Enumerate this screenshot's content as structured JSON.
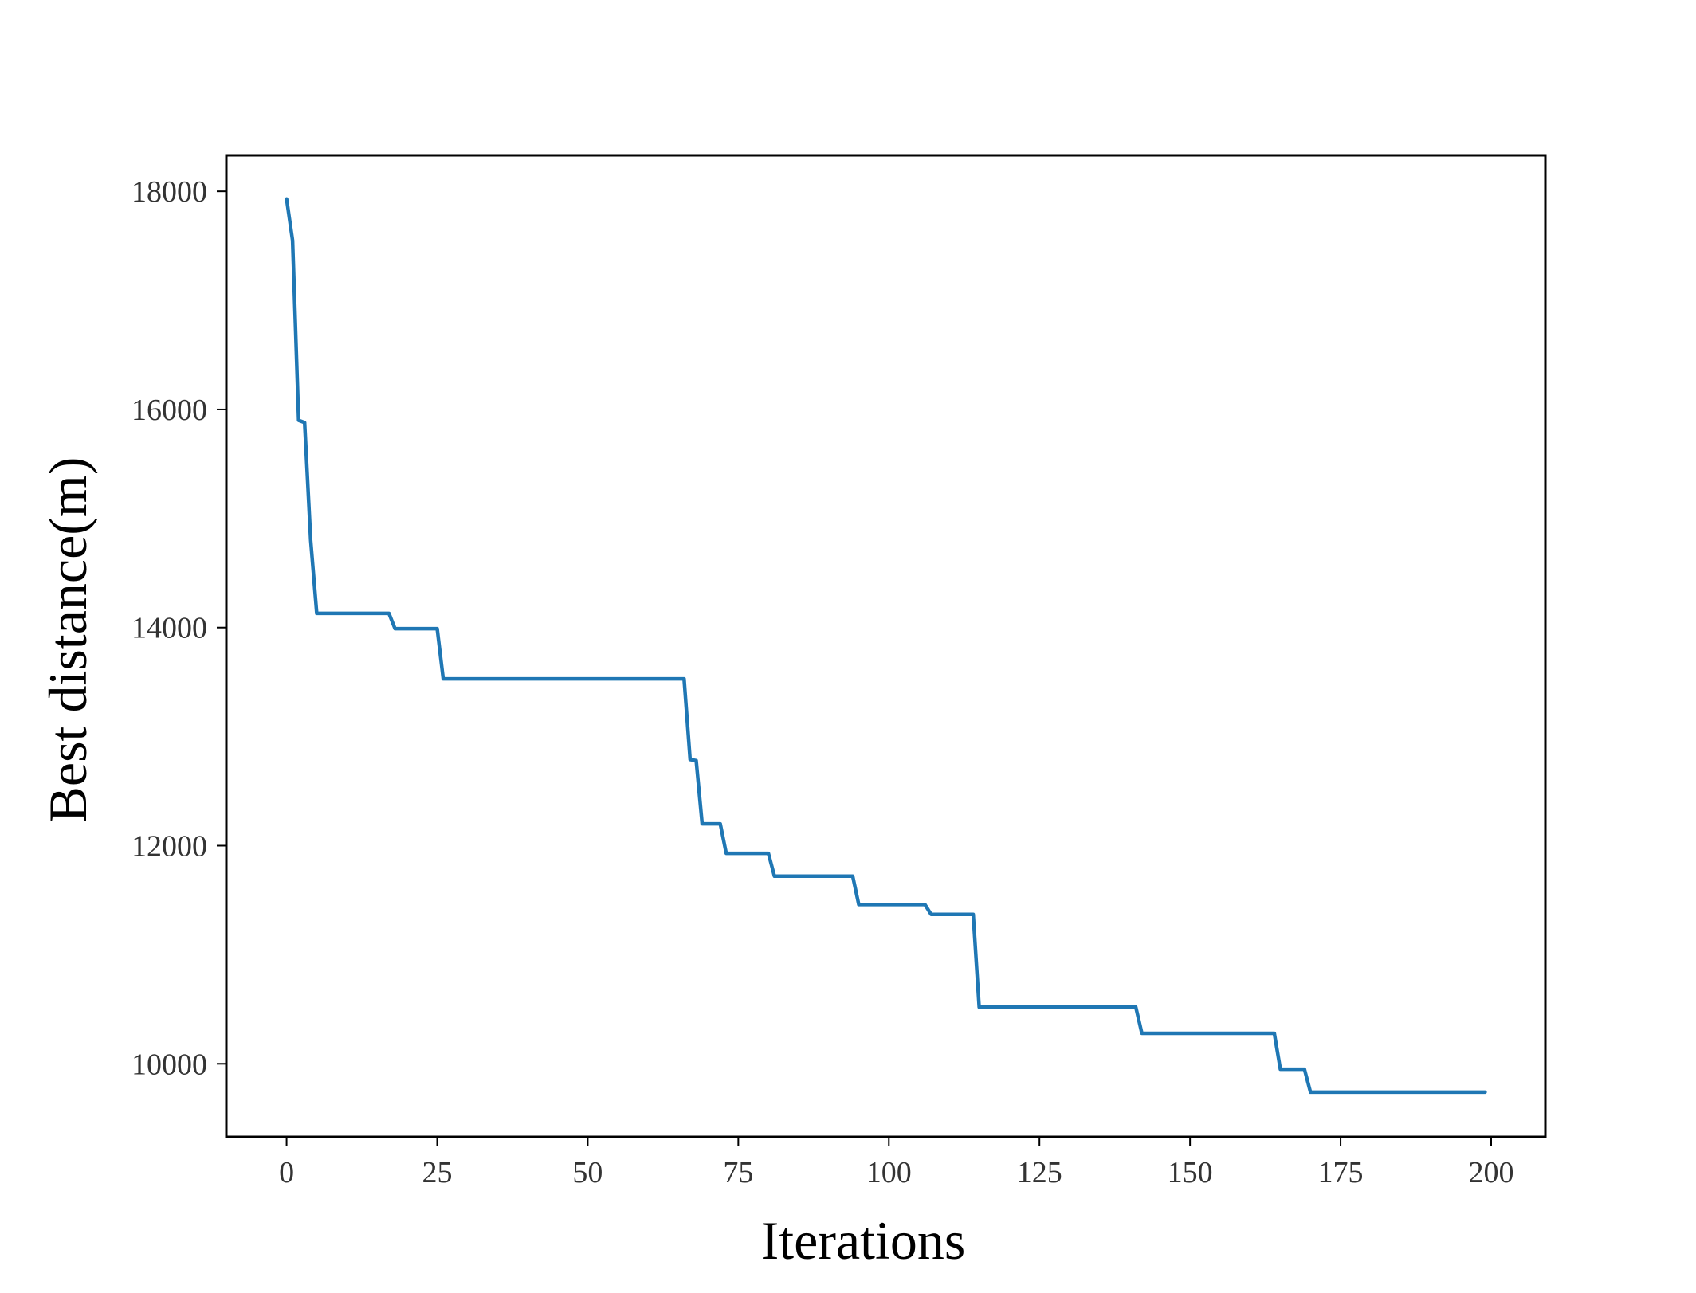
{
  "chart_data": {
    "type": "line",
    "title": "",
    "xlabel": "Iterations",
    "ylabel": "Best distance(m)",
    "xlim": [
      -10,
      209
    ],
    "ylim": [
      9330,
      18330
    ],
    "grid": false,
    "xticks": [
      0,
      25,
      50,
      75,
      100,
      125,
      150,
      175,
      200
    ],
    "yticks": [
      10000,
      12000,
      14000,
      16000,
      18000
    ],
    "series": [
      {
        "color": "#1f77b4",
        "points": [
          [
            0,
            17930
          ],
          [
            1,
            17550
          ],
          [
            2,
            15900
          ],
          [
            3,
            15880
          ],
          [
            4,
            14800
          ],
          [
            5,
            14130
          ],
          [
            17,
            14130
          ],
          [
            18,
            13990
          ],
          [
            25,
            13990
          ],
          [
            26,
            13530
          ],
          [
            66,
            13530
          ],
          [
            67,
            12790
          ],
          [
            68,
            12780
          ],
          [
            69,
            12200
          ],
          [
            72,
            12200
          ],
          [
            73,
            11930
          ],
          [
            80,
            11930
          ],
          [
            81,
            11720
          ],
          [
            94,
            11720
          ],
          [
            95,
            11460
          ],
          [
            106,
            11460
          ],
          [
            107,
            11370
          ],
          [
            114,
            11370
          ],
          [
            115,
            10520
          ],
          [
            141,
            10520
          ],
          [
            142,
            10280
          ],
          [
            164,
            10280
          ],
          [
            165,
            9950
          ],
          [
            169,
            9950
          ],
          [
            170,
            9740
          ],
          [
            199,
            9740
          ]
        ]
      }
    ]
  }
}
